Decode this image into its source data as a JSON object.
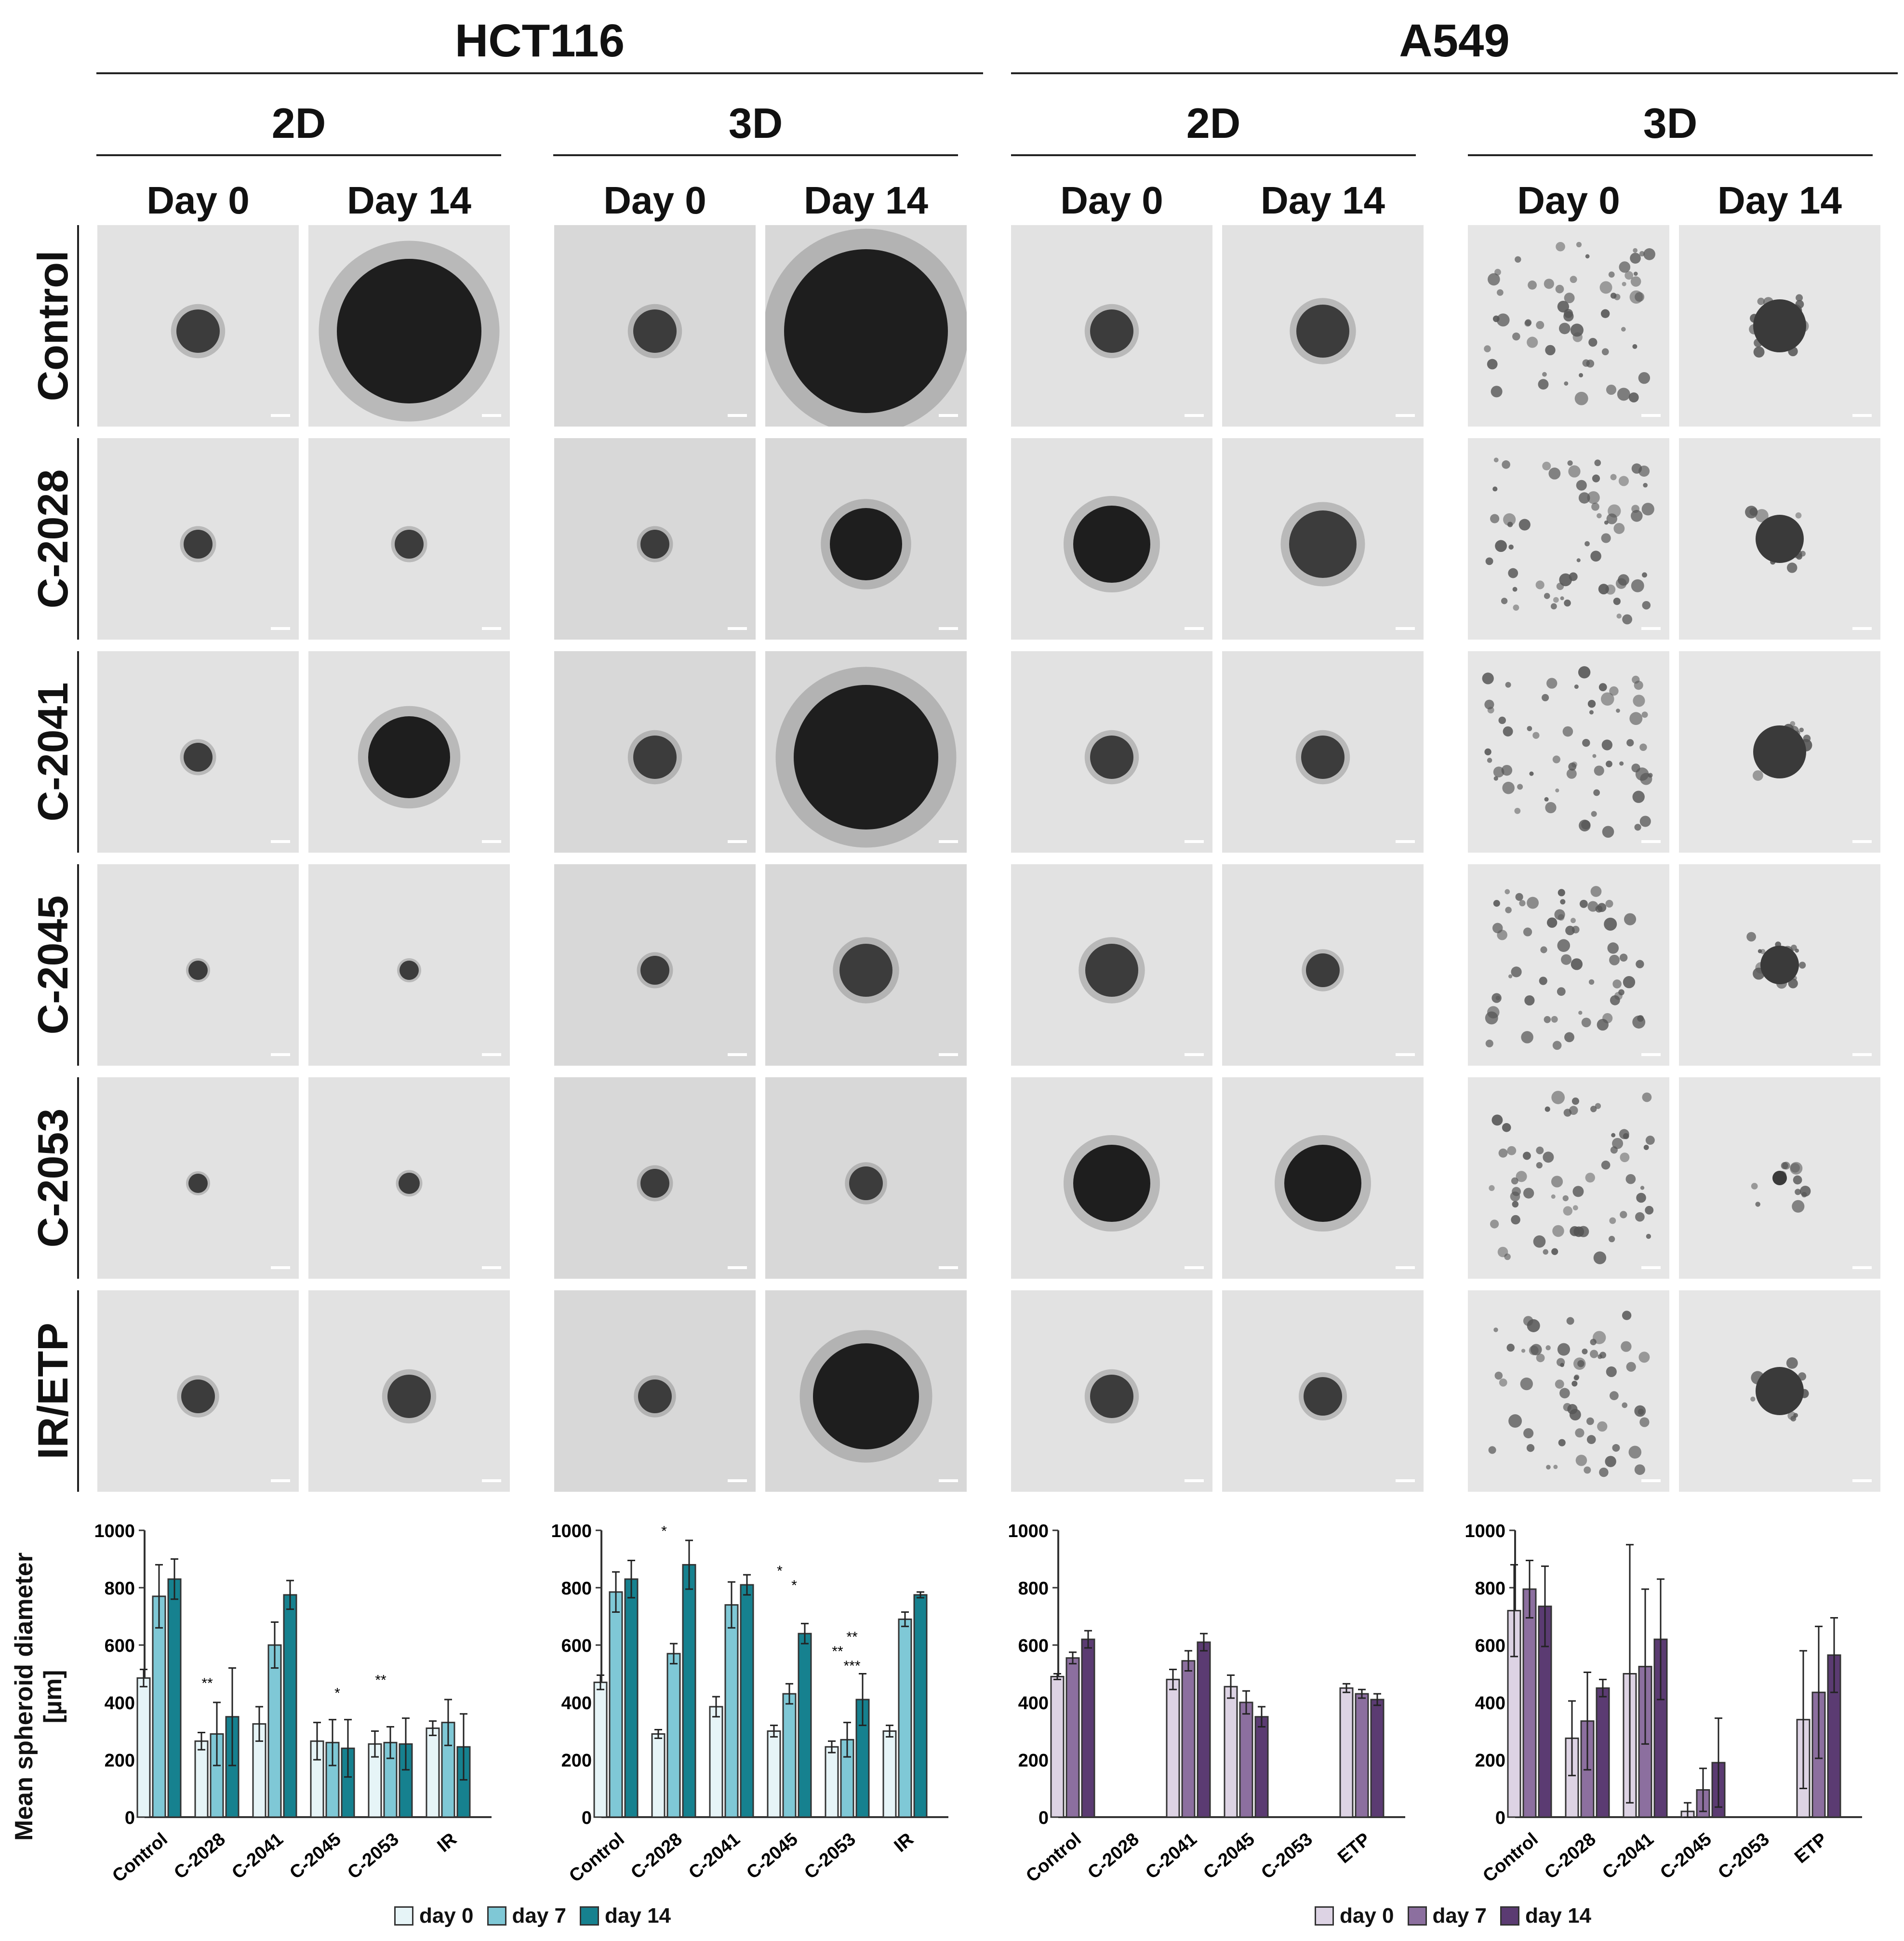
{
  "cell_lines": [
    {
      "name": "HCT116"
    },
    {
      "name": "A549"
    }
  ],
  "culture_headers": [
    "2D",
    "3D",
    "2D",
    "3D"
  ],
  "day_headers": [
    "Day 0",
    "Day 14"
  ],
  "row_labels": [
    "Control",
    "C-2028",
    "C-2041",
    "C-2045",
    "C-2053",
    "IR/ETP"
  ],
  "y_axis_label": [
    "Mean spheroid diameter",
    "[µm]"
  ],
  "legends": [
    {
      "items": [
        "day 0",
        "day 7",
        "day 14"
      ],
      "colors": [
        "#e6f4f7",
        "#7fc8d6",
        "#16818f"
      ]
    },
    {
      "items": [
        "day 0",
        "day 7",
        "day 14"
      ],
      "colors": [
        "#ddd3e4",
        "#8c6f9f",
        "#5b3b72"
      ]
    }
  ],
  "images": {
    "bg_2d": "#e2e2e2",
    "bg_3d": "#d8d8d8",
    "dark": "#1e1e1e"
  },
  "chart_data": [
    {
      "type": "bar",
      "title": "HCT116 2D",
      "categories": [
        "Control",
        "C-2028",
        "C-2041",
        "C-2045",
        "C-2053",
        "IR"
      ],
      "ylim": [
        0,
        1000
      ],
      "yticks": [
        0,
        200,
        400,
        600,
        800,
        1000
      ],
      "ylabel": "Mean spheroid diameter [µm]",
      "series": [
        {
          "name": "day 0",
          "values": [
            485,
            265,
            325,
            265,
            255,
            310
          ],
          "errors": [
            30,
            30,
            60,
            65,
            45,
            25
          ]
        },
        {
          "name": "day 7",
          "values": [
            770,
            290,
            600,
            260,
            260,
            330
          ],
          "errors": [
            110,
            110,
            80,
            80,
            55,
            80
          ]
        },
        {
          "name": "day 14",
          "values": [
            830,
            350,
            775,
            240,
            255,
            245
          ],
          "errors": [
            70,
            170,
            50,
            100,
            90,
            115
          ]
        }
      ],
      "annotations": [
        {
          "category": "C-2028",
          "text": "**"
        },
        {
          "category": "C-2045",
          "text": "*"
        },
        {
          "category": "C-2053",
          "text": "**"
        }
      ]
    },
    {
      "type": "bar",
      "title": "HCT116 3D",
      "categories": [
        "Control",
        "C-2028",
        "C-2041",
        "C-2045",
        "C-2053",
        "IR"
      ],
      "ylim": [
        0,
        1000
      ],
      "yticks": [
        0,
        200,
        400,
        600,
        800,
        1000
      ],
      "series": [
        {
          "name": "day 0",
          "values": [
            470,
            290,
            385,
            300,
            245,
            300
          ],
          "errors": [
            25,
            15,
            35,
            20,
            20,
            20
          ]
        },
        {
          "name": "day 7",
          "values": [
            785,
            570,
            740,
            430,
            270,
            690
          ],
          "errors": [
            70,
            35,
            80,
            35,
            60,
            25
          ]
        },
        {
          "name": "day 14",
          "values": [
            830,
            880,
            810,
            640,
            410,
            775
          ],
          "errors": [
            65,
            85,
            35,
            35,
            90,
            10
          ]
        }
      ],
      "annotations": [
        {
          "category": "C-2028",
          "text": "*"
        },
        {
          "category": "C-2045",
          "text": "*"
        },
        {
          "category": "C-2045",
          "text": "*"
        },
        {
          "category": "C-2053",
          "text": "***"
        },
        {
          "category": "C-2053",
          "text": "**"
        },
        {
          "category": "C-2053",
          "text": "**"
        }
      ]
    },
    {
      "type": "bar",
      "title": "A549 2D",
      "categories": [
        "Control",
        "C-2028",
        "C-2041",
        "C-2045",
        "C-2053",
        "ETP"
      ],
      "ylim": [
        0,
        1000
      ],
      "yticks": [
        0,
        200,
        400,
        600,
        800,
        1000
      ],
      "series": [
        {
          "name": "day 0",
          "values": [
            490,
            0,
            480,
            455,
            0,
            450
          ],
          "errors": [
            10,
            0,
            35,
            40,
            0,
            15
          ]
        },
        {
          "name": "day 7",
          "values": [
            555,
            0,
            545,
            400,
            0,
            430
          ],
          "errors": [
            20,
            0,
            35,
            40,
            0,
            15
          ]
        },
        {
          "name": "day 14",
          "values": [
            620,
            0,
            610,
            350,
            0,
            410
          ],
          "errors": [
            30,
            0,
            30,
            35,
            0,
            20
          ]
        }
      ]
    },
    {
      "type": "bar",
      "title": "A549 3D",
      "categories": [
        "Control",
        "C-2028",
        "C-2041",
        "C-2045",
        "C-2053",
        "ETP"
      ],
      "ylim": [
        0,
        1000
      ],
      "yticks": [
        0,
        200,
        400,
        600,
        800,
        1000
      ],
      "series": [
        {
          "name": "day 0",
          "values": [
            720,
            275,
            500,
            20,
            0,
            340
          ],
          "errors": [
            160,
            130,
            450,
            30,
            0,
            240
          ]
        },
        {
          "name": "day 7",
          "values": [
            795,
            335,
            525,
            95,
            0,
            435
          ],
          "errors": [
            100,
            170,
            270,
            75,
            0,
            230
          ]
        },
        {
          "name": "day 14",
          "values": [
            735,
            450,
            620,
            190,
            0,
            565
          ],
          "errors": [
            140,
            30,
            210,
            155,
            0,
            130
          ]
        }
      ]
    }
  ]
}
